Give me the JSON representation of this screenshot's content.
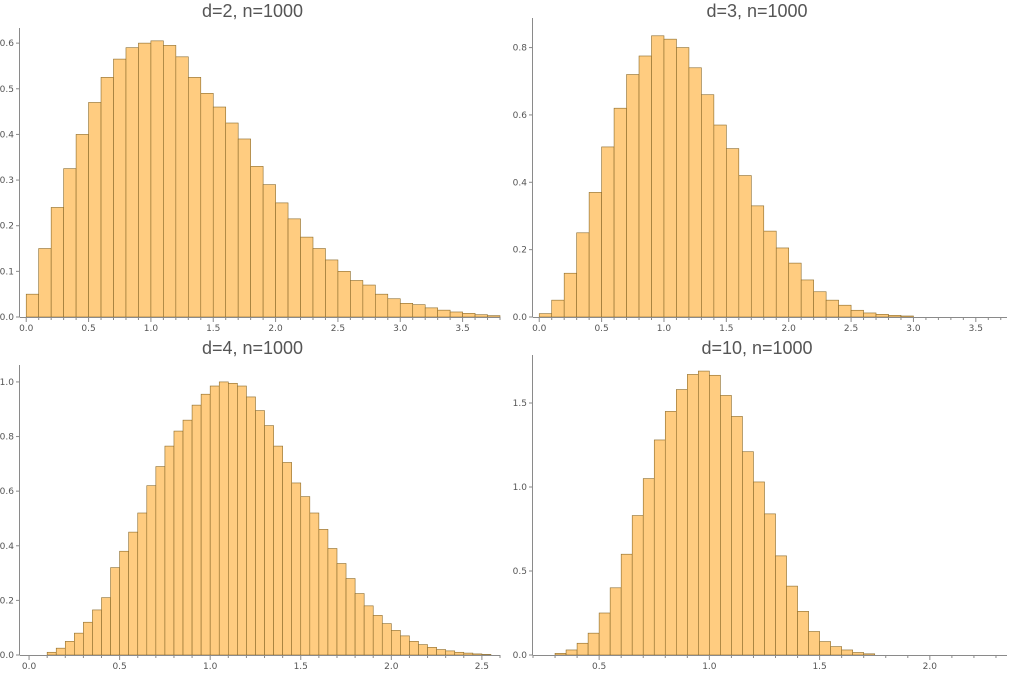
{
  "colors": {
    "bar_fill": "#ffcc80",
    "bar_stroke": "#8a6a2a",
    "axis": "#8a8a8a",
    "text": "#555555"
  },
  "chart_data": [
    {
      "type": "bar",
      "title": "d=2, n=1000",
      "bin_width": 0.1,
      "x_start": 0.0,
      "xlim": [
        -0.05,
        3.8
      ],
      "ylim": [
        0,
        0.62
      ],
      "xticks": [
        0.0,
        0.5,
        1.0,
        1.5,
        2.0,
        2.5,
        3.0,
        3.5
      ],
      "xtick_labels": [
        "0.0",
        "0.5",
        "1.0",
        "1.5",
        "2.0",
        "2.5",
        "3.0",
        "3.5"
      ],
      "yticks": [
        0.0,
        0.1,
        0.2,
        0.3,
        0.4,
        0.5,
        0.6
      ],
      "ytick_labels": [
        "0.0",
        "0.1",
        "0.2",
        "0.3",
        "0.4",
        "0.5",
        "0.6"
      ],
      "values": [
        0.05,
        0.15,
        0.24,
        0.325,
        0.4,
        0.47,
        0.525,
        0.565,
        0.59,
        0.6,
        0.605,
        0.595,
        0.57,
        0.525,
        0.49,
        0.46,
        0.425,
        0.39,
        0.33,
        0.29,
        0.25,
        0.215,
        0.175,
        0.15,
        0.125,
        0.1,
        0.08,
        0.07,
        0.05,
        0.04,
        0.03,
        0.027,
        0.02,
        0.015,
        0.011,
        0.008,
        0.005,
        0.003
      ]
    },
    {
      "type": "bar",
      "title": "d=3, n=1000",
      "bin_width": 0.1,
      "x_start": 0.0,
      "xlim": [
        -0.05,
        3.75
      ],
      "ylim": [
        0,
        0.87
      ],
      "xticks": [
        0.0,
        0.5,
        1.0,
        1.5,
        2.0,
        2.5,
        3.0,
        3.5
      ],
      "xtick_labels": [
        "0.0",
        "0.5",
        "1.0",
        "1.5",
        "2.0",
        "2.5",
        "3.0",
        "3.5"
      ],
      "yticks": [
        0.0,
        0.2,
        0.4,
        0.6,
        0.8
      ],
      "ytick_labels": [
        "0.0",
        "0.2",
        "0.4",
        "0.6",
        "0.8"
      ],
      "values": [
        0.01,
        0.05,
        0.13,
        0.25,
        0.37,
        0.505,
        0.62,
        0.72,
        0.775,
        0.835,
        0.825,
        0.8,
        0.74,
        0.66,
        0.57,
        0.5,
        0.42,
        0.33,
        0.255,
        0.205,
        0.16,
        0.11,
        0.075,
        0.05,
        0.035,
        0.02,
        0.012,
        0.008,
        0.005,
        0.003
      ]
    },
    {
      "type": "bar",
      "title": "d=4, n=1000",
      "bin_width": 0.05,
      "x_start": 0.1,
      "xlim": [
        -0.05,
        2.6
      ],
      "ylim": [
        0,
        1.04
      ],
      "xticks": [
        0.0,
        0.5,
        1.0,
        1.5,
        2.0,
        2.5
      ],
      "xtick_labels": [
        "0.0",
        "0.5",
        "1.0",
        "1.5",
        "2.0",
        "2.5"
      ],
      "yticks": [
        0.0,
        0.2,
        0.4,
        0.6,
        0.8,
        1.0
      ],
      "ytick_labels": [
        "0.0",
        "0.2",
        "0.4",
        "0.6",
        "0.8",
        "1.0"
      ],
      "values": [
        0.01,
        0.025,
        0.05,
        0.08,
        0.12,
        0.165,
        0.21,
        0.32,
        0.38,
        0.45,
        0.52,
        0.62,
        0.69,
        0.765,
        0.82,
        0.86,
        0.915,
        0.955,
        0.985,
        1.0,
        0.995,
        0.985,
        0.945,
        0.895,
        0.84,
        0.765,
        0.705,
        0.63,
        0.58,
        0.52,
        0.46,
        0.39,
        0.335,
        0.28,
        0.225,
        0.18,
        0.145,
        0.115,
        0.09,
        0.07,
        0.05,
        0.038,
        0.028,
        0.02,
        0.015,
        0.01,
        0.007,
        0.004,
        0.002
      ]
    },
    {
      "type": "bar",
      "title": "d=10, n=1000",
      "bin_width": 0.05,
      "x_start": 0.3,
      "xlim": [
        0.2,
        2.35
      ],
      "ylim": [
        0,
        1.75
      ],
      "xticks": [
        0.5,
        1.0,
        1.5,
        2.0
      ],
      "xtick_labels": [
        "0.5",
        "1.0",
        "1.5",
        "2.0"
      ],
      "yticks": [
        0.0,
        0.5,
        1.0,
        1.5
      ],
      "ytick_labels": [
        "0.0",
        "0.5",
        "1.0",
        "1.5"
      ],
      "values": [
        0.01,
        0.03,
        0.07,
        0.13,
        0.25,
        0.4,
        0.6,
        0.83,
        1.05,
        1.28,
        1.45,
        1.58,
        1.67,
        1.69,
        1.665,
        1.545,
        1.42,
        1.21,
        1.03,
        0.84,
        0.59,
        0.41,
        0.26,
        0.14,
        0.08,
        0.05,
        0.03,
        0.015,
        0.007
      ]
    }
  ]
}
